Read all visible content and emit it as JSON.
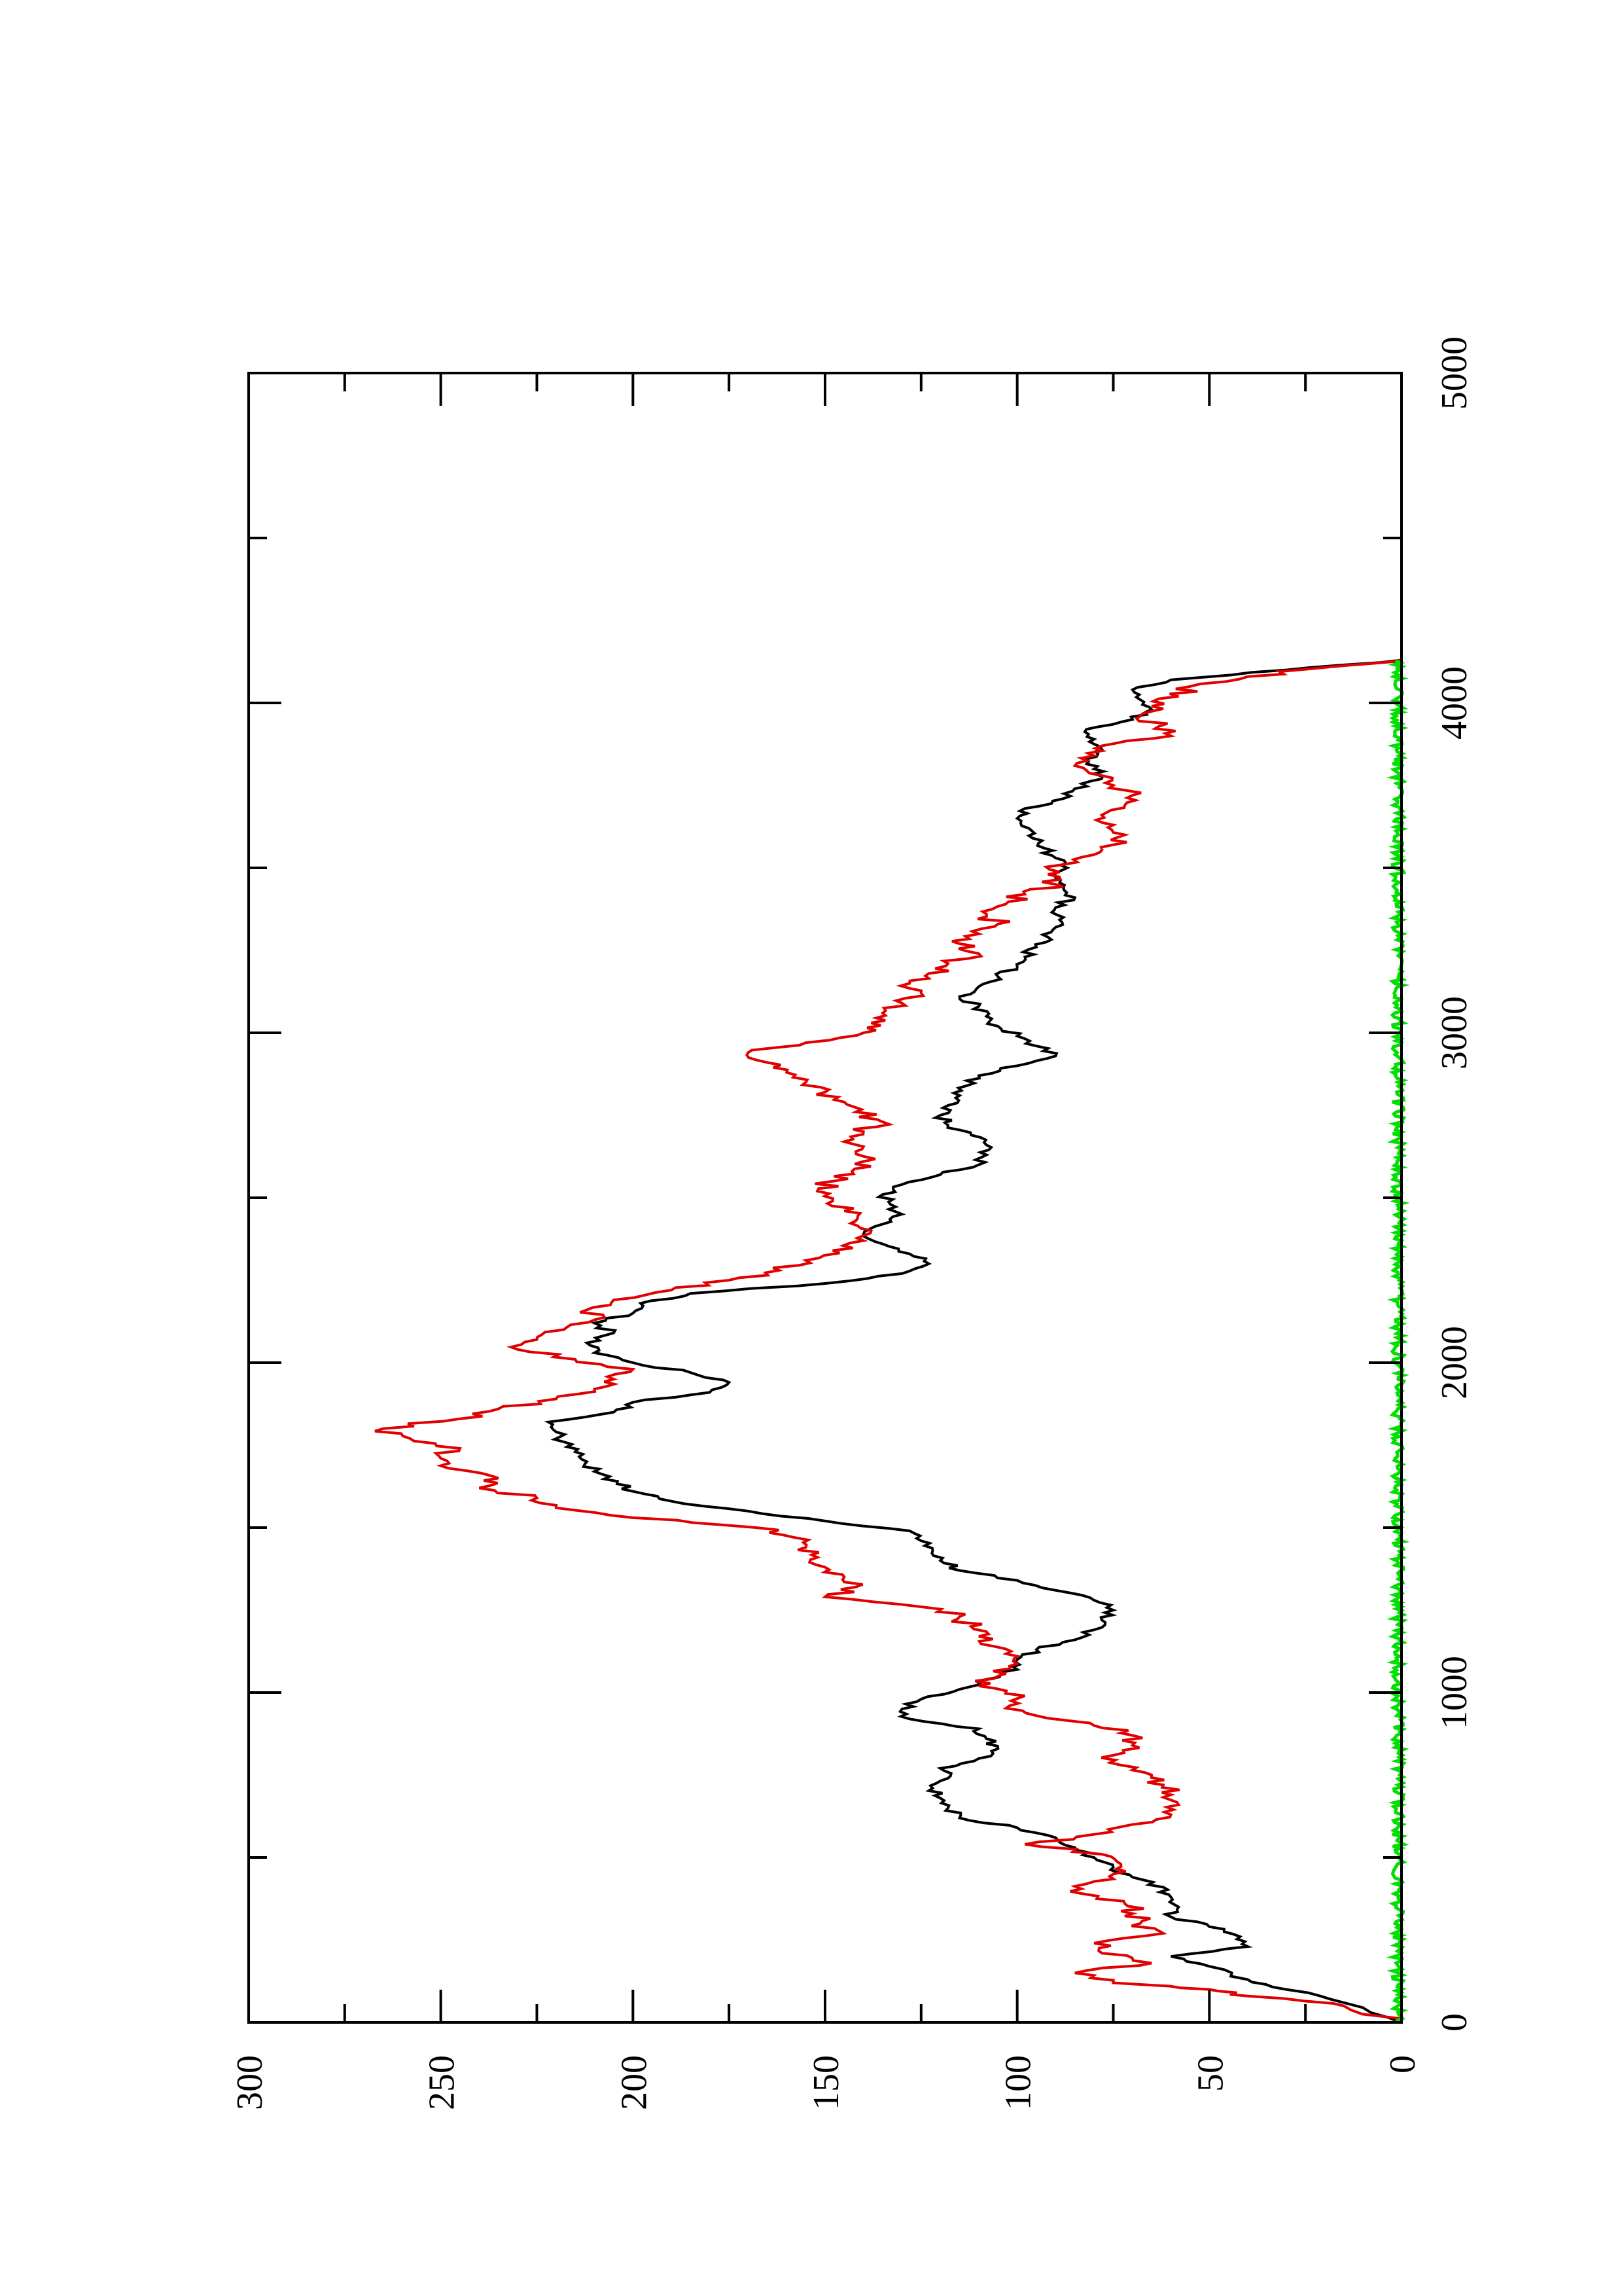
{
  "chart_data": {
    "type": "line",
    "title": "",
    "xlabel": "",
    "ylabel": "",
    "orientation": "rotated-90-counterclockwise",
    "xlim": [
      0,
      5000
    ],
    "ylim": [
      0,
      300
    ],
    "x_ticks": [
      "0",
      "1000",
      "2000",
      "3000",
      "4000",
      "5000"
    ],
    "y_ticks": [
      "0",
      "50",
      "100",
      "150",
      "200",
      "250",
      "300"
    ],
    "grid": false,
    "legend": "none",
    "series": [
      {
        "color": "#000000",
        "points": [
          [
            0,
            0
          ],
          [
            60,
            15
          ],
          [
            100,
            30
          ],
          [
            130,
            40
          ],
          [
            170,
            50
          ],
          [
            200,
            60
          ],
          [
            230,
            40
          ],
          [
            260,
            42
          ],
          [
            290,
            50
          ],
          [
            320,
            60
          ],
          [
            350,
            58
          ],
          [
            380,
            60
          ],
          [
            410,
            62
          ],
          [
            440,
            70
          ],
          [
            470,
            75
          ],
          [
            500,
            80
          ],
          [
            530,
            85
          ],
          [
            560,
            90
          ],
          [
            590,
            100
          ],
          [
            620,
            115
          ],
          [
            650,
            118
          ],
          [
            680,
            120
          ],
          [
            710,
            122
          ],
          [
            740,
            118
          ],
          [
            770,
            120
          ],
          [
            800,
            110
          ],
          [
            830,
            105
          ],
          [
            860,
            108
          ],
          [
            890,
            110
          ],
          [
            920,
            128
          ],
          [
            950,
            130
          ],
          [
            980,
            125
          ],
          [
            1010,
            115
          ],
          [
            1040,
            108
          ],
          [
            1070,
            100
          ],
          [
            1100,
            100
          ],
          [
            1130,
            95
          ],
          [
            1160,
            85
          ],
          [
            1190,
            80
          ],
          [
            1220,
            78
          ],
          [
            1250,
            75
          ],
          [
            1280,
            80
          ],
          [
            1310,
            90
          ],
          [
            1340,
            100
          ],
          [
            1370,
            115
          ],
          [
            1400,
            120
          ],
          [
            1430,
            122
          ],
          [
            1460,
            125
          ],
          [
            1490,
            128
          ],
          [
            1520,
            150
          ],
          [
            1550,
            170
          ],
          [
            1580,
            190
          ],
          [
            1610,
            200
          ],
          [
            1640,
            204
          ],
          [
            1670,
            210
          ],
          [
            1700,
            212
          ],
          [
            1730,
            215
          ],
          [
            1760,
            218
          ],
          [
            1790,
            220
          ],
          [
            1820,
            222
          ],
          [
            1850,
            205
          ],
          [
            1880,
            200
          ],
          [
            1910,
            180
          ],
          [
            1940,
            175
          ],
          [
            1970,
            185
          ],
          [
            2000,
            200
          ],
          [
            2030,
            210
          ],
          [
            2060,
            212
          ],
          [
            2090,
            205
          ],
          [
            2120,
            210
          ],
          [
            2150,
            200
          ],
          [
            2180,
            198
          ],
          [
            2210,
            185
          ],
          [
            2240,
            150
          ],
          [
            2270,
            130
          ],
          [
            2300,
            123
          ],
          [
            2330,
            128
          ],
          [
            2360,
            135
          ],
          [
            2390,
            140
          ],
          [
            2420,
            135
          ],
          [
            2450,
            130
          ],
          [
            2480,
            133
          ],
          [
            2510,
            135
          ],
          [
            2540,
            130
          ],
          [
            2570,
            120
          ],
          [
            2600,
            110
          ],
          [
            2630,
            108
          ],
          [
            2660,
            108
          ],
          [
            2690,
            112
          ],
          [
            2720,
            118
          ],
          [
            2750,
            120
          ],
          [
            2780,
            118
          ],
          [
            2810,
            115
          ],
          [
            2840,
            113
          ],
          [
            2870,
            110
          ],
          [
            2900,
            100
          ],
          [
            2930,
            90
          ],
          [
            2960,
            95
          ],
          [
            2990,
            100
          ],
          [
            3020,
            105
          ],
          [
            3050,
            108
          ],
          [
            3080,
            110
          ],
          [
            3110,
            115
          ],
          [
            3140,
            110
          ],
          [
            3170,
            105
          ],
          [
            3200,
            100
          ],
          [
            3230,
            98
          ],
          [
            3260,
            95
          ],
          [
            3290,
            92
          ],
          [
            3320,
            90
          ],
          [
            3350,
            88
          ],
          [
            3380,
            90
          ],
          [
            3410,
            85
          ],
          [
            3440,
            88
          ],
          [
            3470,
            90
          ],
          [
            3500,
            87
          ],
          [
            3530,
            90
          ],
          [
            3560,
            93
          ],
          [
            3590,
            96
          ],
          [
            3620,
            97
          ],
          [
            3650,
            100
          ],
          [
            3680,
            98
          ],
          [
            3710,
            88
          ],
          [
            3740,
            85
          ],
          [
            3770,
            78
          ],
          [
            3800,
            80
          ],
          [
            3830,
            82
          ],
          [
            3860,
            78
          ],
          [
            3890,
            80
          ],
          [
            3920,
            82
          ],
          [
            3950,
            70
          ],
          [
            3980,
            65
          ],
          [
            4010,
            68
          ],
          [
            4040,
            70
          ],
          [
            4070,
            60
          ],
          [
            4100,
            30
          ],
          [
            4130,
            0
          ]
        ]
      },
      {
        "color": "#e00000",
        "points": [
          [
            0,
            0
          ],
          [
            50,
            15
          ],
          [
            80,
            40
          ],
          [
            100,
            50
          ],
          [
            120,
            75
          ],
          [
            150,
            85
          ],
          [
            180,
            65
          ],
          [
            210,
            78
          ],
          [
            240,
            80
          ],
          [
            270,
            62
          ],
          [
            300,
            68
          ],
          [
            330,
            70
          ],
          [
            360,
            72
          ],
          [
            390,
            83
          ],
          [
            420,
            82
          ],
          [
            450,
            75
          ],
          [
            480,
            73
          ],
          [
            510,
            78
          ],
          [
            540,
            98
          ],
          [
            570,
            80
          ],
          [
            600,
            70
          ],
          [
            630,
            60
          ],
          [
            660,
            58
          ],
          [
            690,
            60
          ],
          [
            720,
            62
          ],
          [
            750,
            65
          ],
          [
            780,
            73
          ],
          [
            810,
            75
          ],
          [
            840,
            70
          ],
          [
            870,
            70
          ],
          [
            900,
            80
          ],
          [
            930,
            95
          ],
          [
            960,
            102
          ],
          [
            990,
            98
          ],
          [
            1020,
            110
          ],
          [
            1050,
            105
          ],
          [
            1080,
            102
          ],
          [
            1110,
            100
          ],
          [
            1140,
            106
          ],
          [
            1170,
            110
          ],
          [
            1200,
            112
          ],
          [
            1230,
            115
          ],
          [
            1260,
            125
          ],
          [
            1290,
            150
          ],
          [
            1320,
            142
          ],
          [
            1350,
            145
          ],
          [
            1380,
            150
          ],
          [
            1410,
            152
          ],
          [
            1440,
            155
          ],
          [
            1470,
            158
          ],
          [
            1500,
            168
          ],
          [
            1530,
            200
          ],
          [
            1560,
            220
          ],
          [
            1590,
            225
          ],
          [
            1620,
            240
          ],
          [
            1650,
            235
          ],
          [
            1680,
            248
          ],
          [
            1710,
            250
          ],
          [
            1740,
            245
          ],
          [
            1770,
            258
          ],
          [
            1800,
            265
          ],
          [
            1830,
            245
          ],
          [
            1860,
            235
          ],
          [
            1890,
            220
          ],
          [
            1920,
            210
          ],
          [
            1950,
            205
          ],
          [
            1980,
            200
          ],
          [
            2010,
            215
          ],
          [
            2040,
            230
          ],
          [
            2070,
            225
          ],
          [
            2100,
            218
          ],
          [
            2130,
            210
          ],
          [
            2160,
            212
          ],
          [
            2190,
            205
          ],
          [
            2220,
            190
          ],
          [
            2250,
            175
          ],
          [
            2280,
            162
          ],
          [
            2310,
            155
          ],
          [
            2340,
            148
          ],
          [
            2370,
            140
          ],
          [
            2400,
            138
          ],
          [
            2430,
            142
          ],
          [
            2460,
            145
          ],
          [
            2490,
            148
          ],
          [
            2520,
            152
          ],
          [
            2550,
            148
          ],
          [
            2580,
            143
          ],
          [
            2610,
            140
          ],
          [
            2640,
            142
          ],
          [
            2670,
            145
          ],
          [
            2700,
            140
          ],
          [
            2730,
            135
          ],
          [
            2760,
            142
          ],
          [
            2790,
            145
          ],
          [
            2820,
            150
          ],
          [
            2850,
            155
          ],
          [
            2880,
            160
          ],
          [
            2910,
            165
          ],
          [
            2940,
            170
          ],
          [
            2970,
            155
          ],
          [
            3000,
            140
          ],
          [
            3030,
            138
          ],
          [
            3060,
            135
          ],
          [
            3090,
            130
          ],
          [
            3120,
            125
          ],
          [
            3150,
            128
          ],
          [
            3180,
            123
          ],
          [
            3210,
            118
          ],
          [
            3240,
            110
          ],
          [
            3270,
            115
          ],
          [
            3300,
            110
          ],
          [
            3330,
            105
          ],
          [
            3360,
            108
          ],
          [
            3390,
            103
          ],
          [
            3420,
            98
          ],
          [
            3450,
            90
          ],
          [
            3480,
            92
          ],
          [
            3510,
            88
          ],
          [
            3540,
            80
          ],
          [
            3570,
            75
          ],
          [
            3600,
            72
          ],
          [
            3630,
            75
          ],
          [
            3660,
            78
          ],
          [
            3690,
            72
          ],
          [
            3720,
            70
          ],
          [
            3750,
            75
          ],
          [
            3780,
            78
          ],
          [
            3810,
            85
          ],
          [
            3840,
            80
          ],
          [
            3870,
            78
          ],
          [
            3900,
            60
          ],
          [
            3930,
            63
          ],
          [
            3960,
            68
          ],
          [
            3990,
            65
          ],
          [
            4020,
            58
          ],
          [
            4050,
            55
          ],
          [
            4080,
            40
          ],
          [
            4110,
            18
          ],
          [
            4130,
            0
          ]
        ]
      },
      {
        "color": "#00e000",
        "style": "noise near zero",
        "x_range": [
          0,
          4130
        ],
        "amplitude": 1.5
      }
    ]
  }
}
